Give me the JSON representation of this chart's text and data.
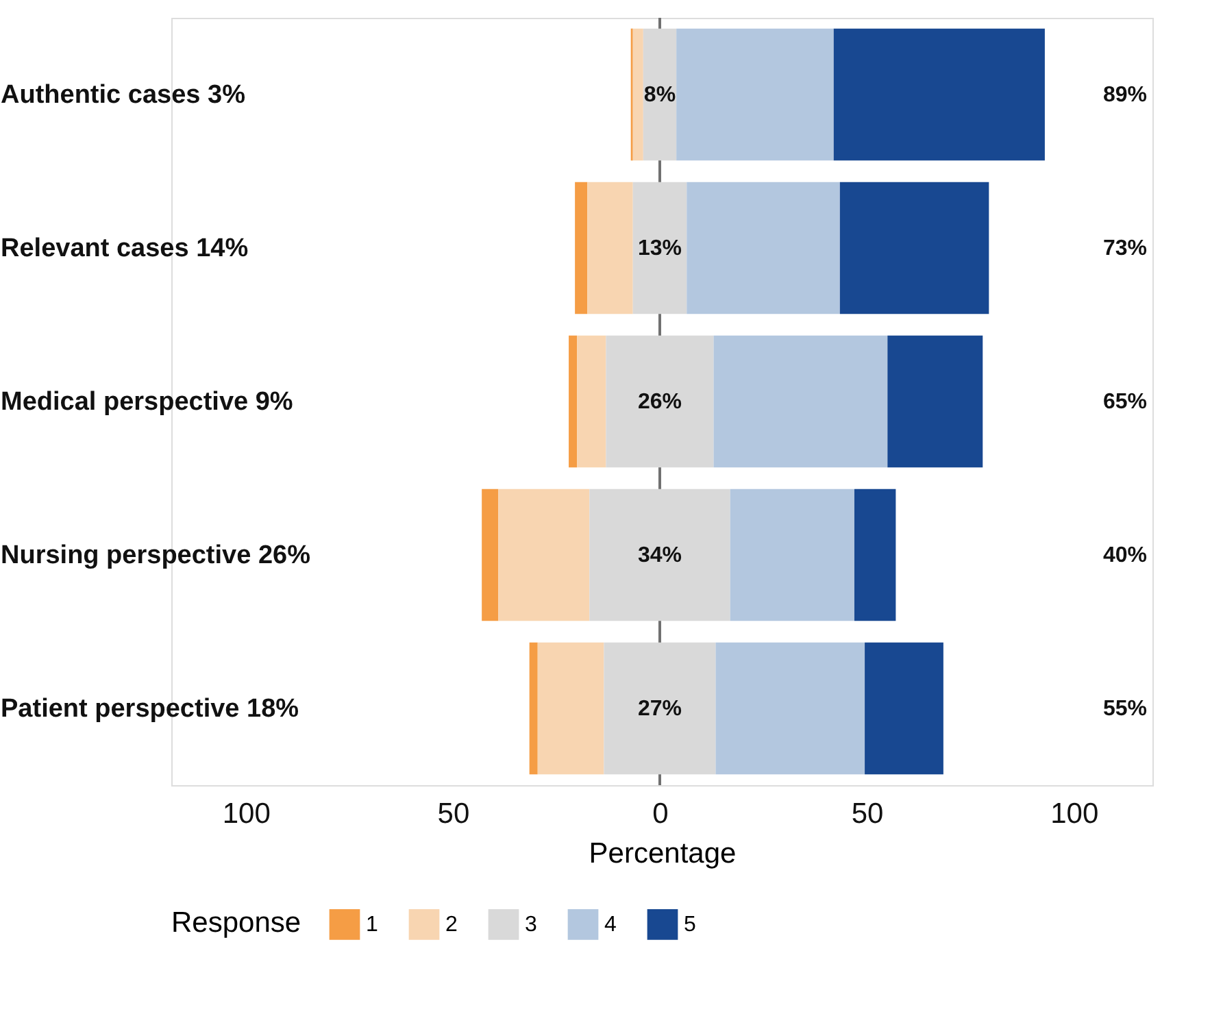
{
  "chart_data": {
    "type": "bar",
    "orientation": "horizontal",
    "categories": [
      "Authentic cases  3%",
      "Relevant cases  14%",
      "Medical perspective  9%",
      "Nursing perspective 26%",
      "Patient perspective 18%"
    ],
    "series": [
      {
        "name": "1",
        "color": "#f59d45",
        "values": [
          0.5,
          3,
          2,
          4,
          2
        ],
        "base": [
          -7,
          -20.5,
          -22,
          -43,
          -31.5
        ]
      },
      {
        "name": "2",
        "color": "#f8d5b1",
        "values": [
          2.5,
          11,
          7,
          22,
          16
        ],
        "base": [
          -6.5,
          -17.5,
          -20,
          -39,
          -29.5
        ]
      },
      {
        "name": "3",
        "color": "#d9d9d9",
        "values": [
          8,
          13,
          26,
          34,
          27
        ],
        "base": [
          -4,
          -6.5,
          -13,
          -17,
          -13.5
        ],
        "value_labels": [
          "8%",
          "13%",
          "26%",
          "34%",
          "27%"
        ]
      },
      {
        "name": "4",
        "color": "#b3c7df",
        "values": [
          38,
          37,
          42,
          30,
          36
        ],
        "base": [
          4,
          6.5,
          13,
          17,
          13.5
        ]
      },
      {
        "name": "5",
        "color": "#184891",
        "values": [
          51,
          36,
          23,
          10,
          19
        ],
        "base": [
          42,
          43.5,
          55,
          47,
          49.5
        ]
      }
    ],
    "annotations": [
      "89%",
      "73%",
      "65%",
      "40%",
      "55%"
    ],
    "xlabel": "Percentage",
    "legend_title": "Response",
    "legend": "bottom",
    "grid": false,
    "xlim": [
      -118,
      119
    ],
    "xticks": [
      {
        "value": -100,
        "label": "100"
      },
      {
        "value": -50,
        "label": "50"
      },
      0,
      50,
      100
    ],
    "ref_lines": [
      {
        "axis": "x",
        "value": 0,
        "color": "#707070"
      }
    ]
  }
}
